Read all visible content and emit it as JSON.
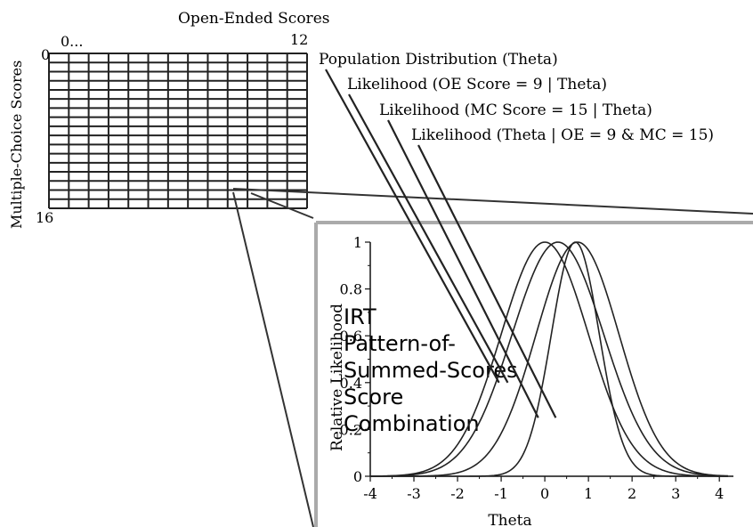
{
  "grid": {
    "title": "Open-Ended Scores",
    "x_start": "0...",
    "x_end": "12",
    "y_title": "Multiple-Choice Scores",
    "y_start": "0",
    "y_end": "16",
    "columns": 13,
    "rows": 17
  },
  "curve_labels": [
    "Population Distribution (Theta)",
    "Likelihood (OE Score = 9 | Theta)",
    "Likelihood (MC Score = 15 | Theta)",
    "Likelihood (Theta | OE = 9 & MC = 15)"
  ],
  "side_text": [
    "IRT",
    "Pattern-of-",
    "Summed-Scores",
    "Score",
    "Combination"
  ],
  "chart_data": {
    "type": "line",
    "xlabel": "Theta",
    "ylabel": "Relative Likelihood",
    "xlim": [
      -4,
      4.2
    ],
    "ylim": [
      0,
      1
    ],
    "xticks": [
      -4,
      -3,
      -2,
      -1,
      0,
      1,
      2,
      3,
      4
    ],
    "yticks": [
      0,
      0.2,
      0.4,
      0.6,
      0.8,
      1
    ],
    "series": [
      {
        "label_ref": "Population Distribution (Theta)",
        "shape": "normal",
        "mean": 0.0,
        "sd": 1.0
      },
      {
        "label_ref": "Likelihood (OE Score = 9 | Theta)",
        "shape": "normal",
        "mean": 0.3,
        "sd": 1.05
      },
      {
        "label_ref": "Likelihood (MC Score = 15 | Theta)",
        "shape": "normal",
        "mean": 0.75,
        "sd": 0.95
      },
      {
        "label_ref": "Likelihood (Theta | OE = 9 & MC = 15)",
        "shape": "normal",
        "mean": 0.7,
        "sd": 0.55
      }
    ]
  }
}
